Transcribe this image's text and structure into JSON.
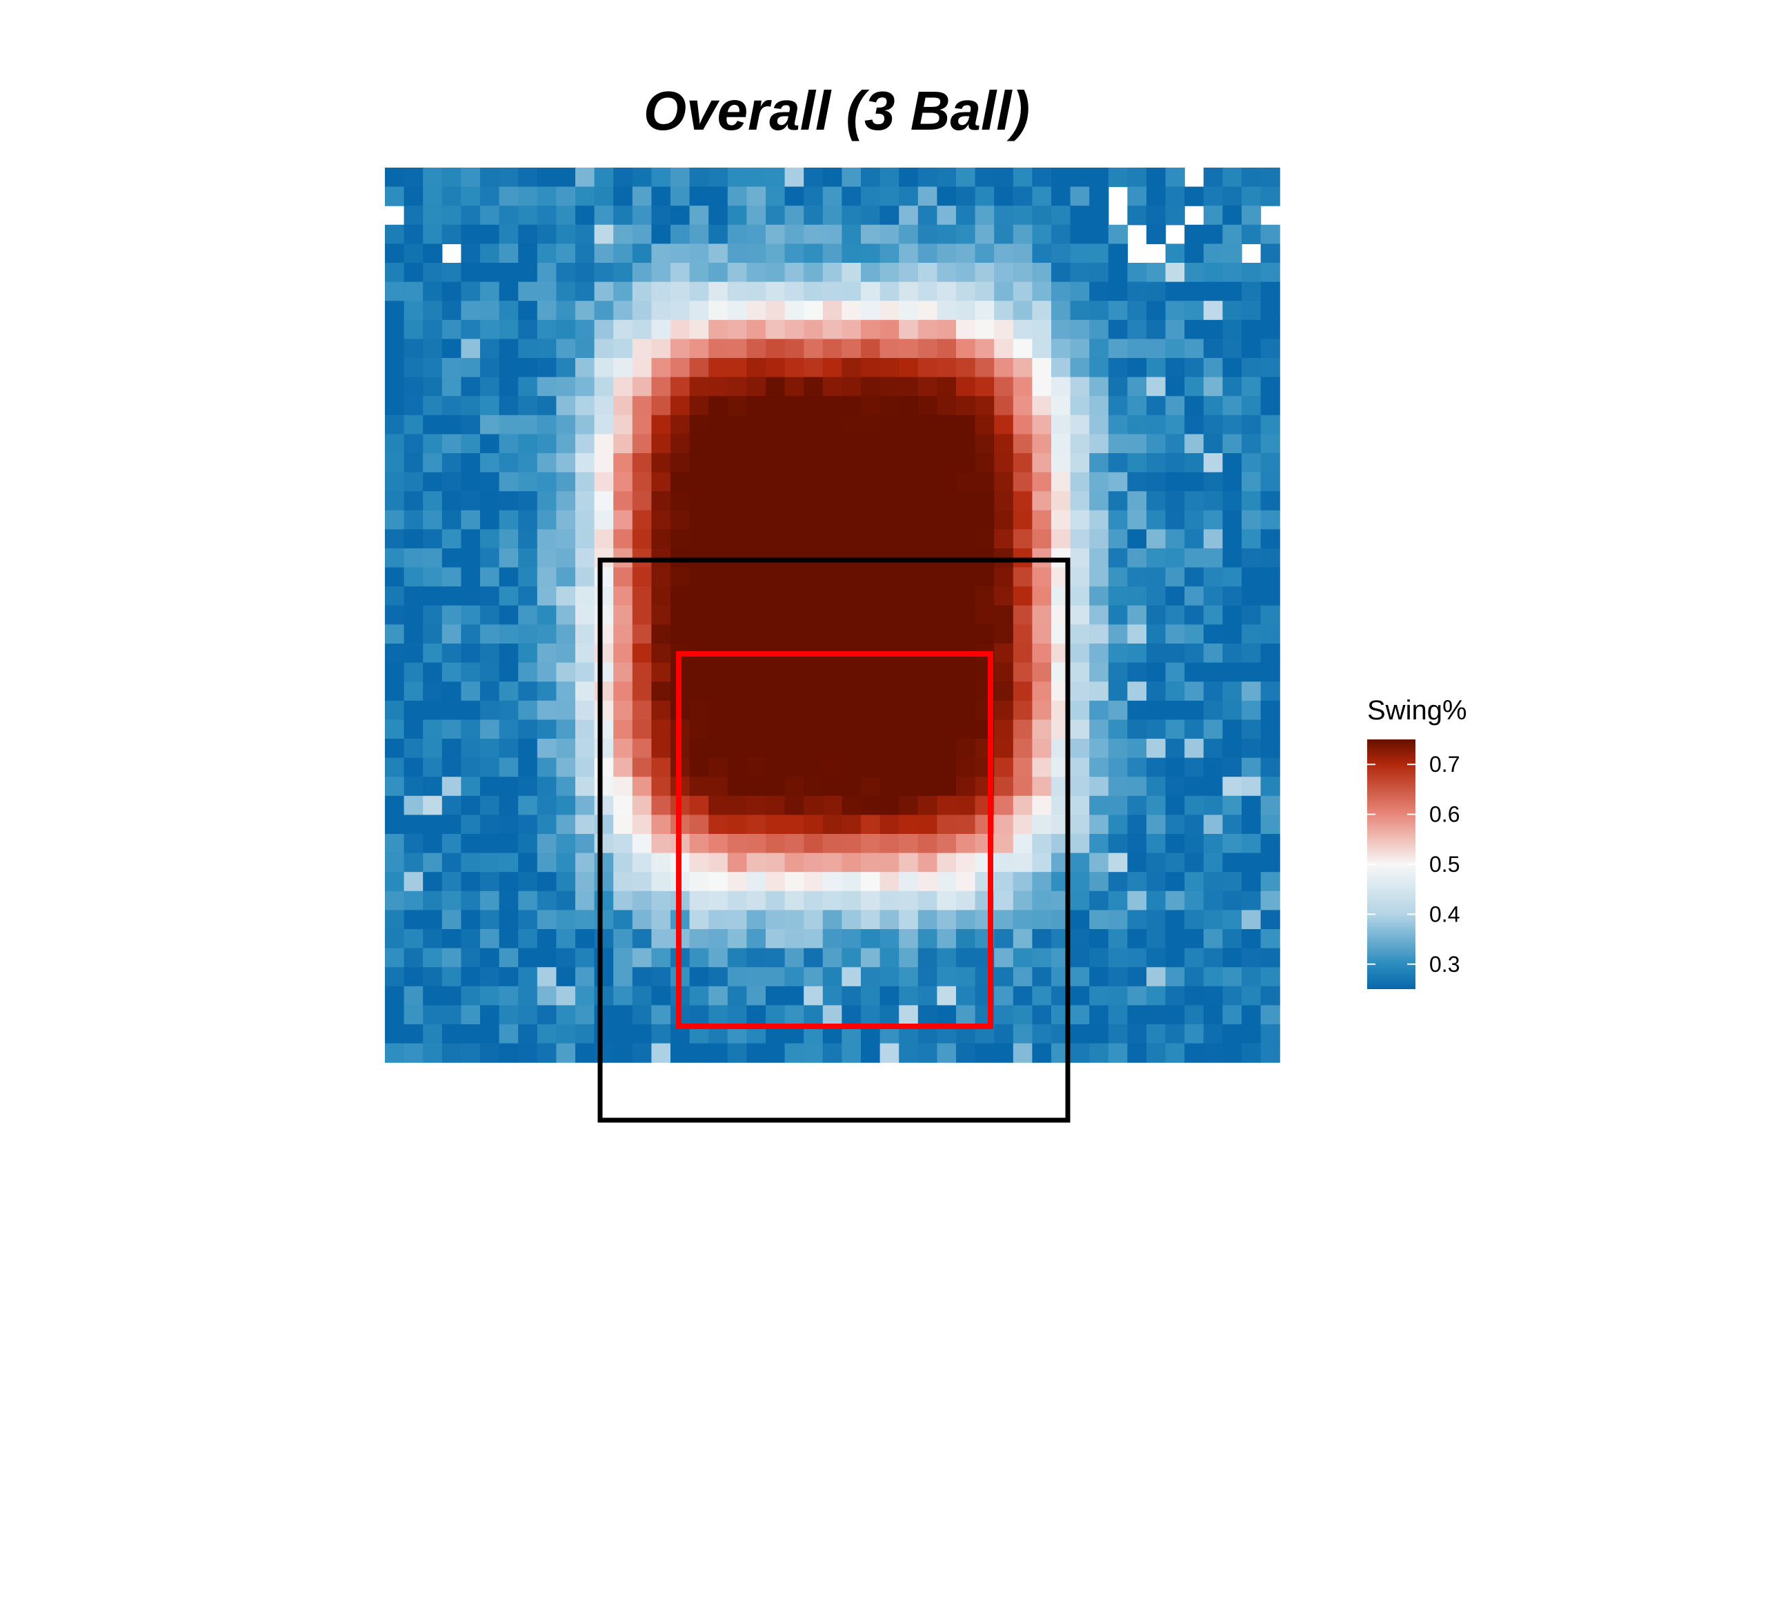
{
  "chart_data": {
    "type": "heatmap",
    "title": "Overall (3 Ball)",
    "xlabel": "",
    "ylabel": "",
    "grid": false,
    "legend": {
      "title": "Swing%",
      "placement": "right",
      "min": 0.25,
      "max": 0.75,
      "ticks": [
        "0.3",
        "0.4",
        "0.5",
        "0.6",
        "0.7"
      ],
      "tick_values": [
        0.3,
        0.4,
        0.5,
        0.6,
        0.7
      ]
    },
    "grid_size": {
      "columns": 47,
      "rows": 47
    },
    "peak_cell": {
      "col": 23,
      "row": 22,
      "value": 0.75
    },
    "base_value": 0.27,
    "colorscale": [
      {
        "value": 0.25,
        "color": "#0868AC"
      },
      {
        "value": 0.3,
        "color": "#2B8CBE"
      },
      {
        "value": 0.4,
        "color": "#B4D4E6"
      },
      {
        "value": 0.5,
        "color": "#F7F7F7"
      },
      {
        "value": 0.6,
        "color": "#E8877A"
      },
      {
        "value": 0.7,
        "color": "#B2280C"
      },
      {
        "value": 0.75,
        "color": "#671000"
      }
    ],
    "outer_zone": {
      "label": "",
      "color": "#000000"
    },
    "inner_zone": {
      "label": "",
      "color": "#FF0000"
    }
  }
}
